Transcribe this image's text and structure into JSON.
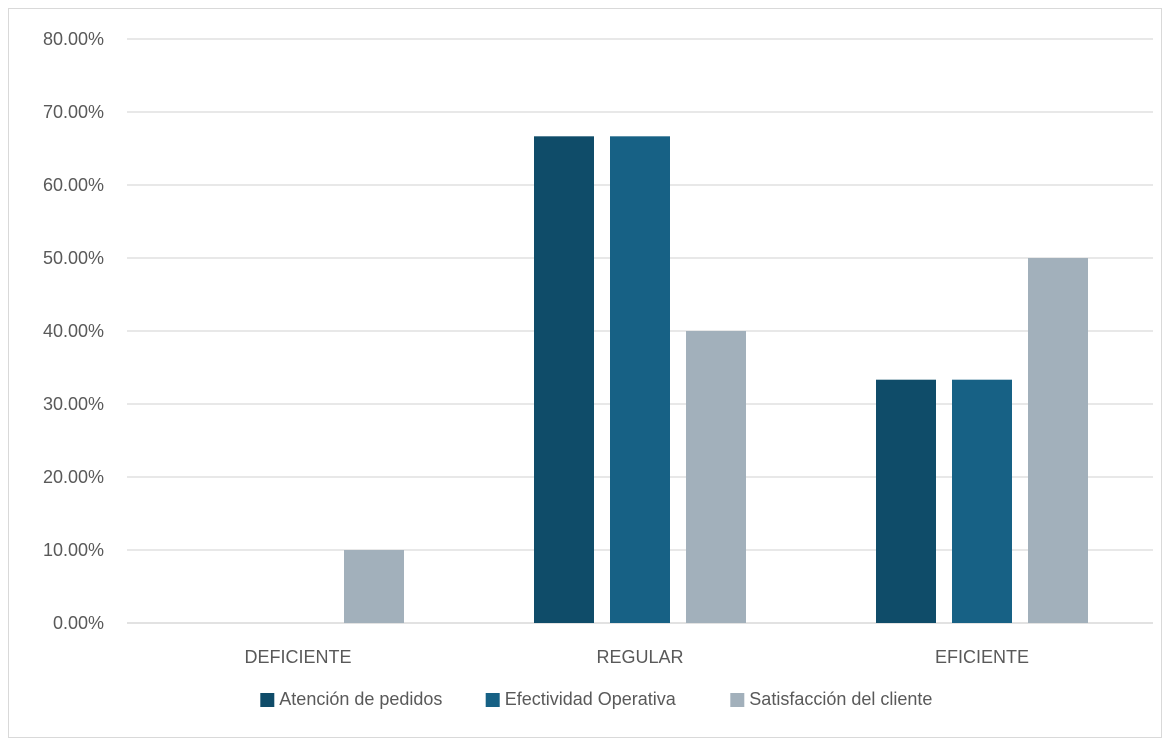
{
  "chart_data": {
    "type": "bar",
    "categories": [
      "DEFICIENTE",
      "REGULAR",
      "EFICIENTE"
    ],
    "series": [
      {
        "name": "Atención de pedidos",
        "color": "#0f4c69",
        "values": [
          0,
          66.67,
          33.33
        ]
      },
      {
        "name": "Efectividad Operativa",
        "color": "#176185",
        "values": [
          0,
          66.67,
          33.33
        ]
      },
      {
        "name": "Satisfacción del cliente",
        "color": "#a2b0bb",
        "values": [
          10,
          40,
          50
        ]
      }
    ],
    "ylim": [
      0,
      80
    ],
    "yticks": [
      "0.00%",
      "10.00%",
      "20.00%",
      "30.00%",
      "40.00%",
      "50.00%",
      "60.00%",
      "70.00%",
      "80.00%"
    ],
    "grid": true,
    "legend_position": "bottom",
    "title": "",
    "xlabel": "",
    "ylabel": ""
  }
}
